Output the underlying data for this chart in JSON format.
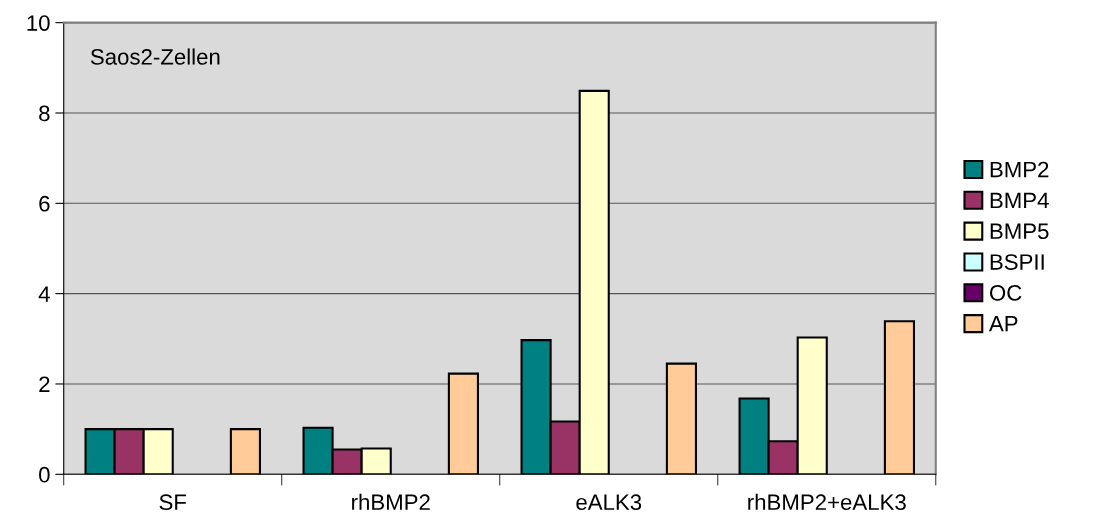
{
  "chart_data": {
    "type": "bar",
    "title": "Saos2-Zellen",
    "categories": [
      "SF",
      "rhBMP2",
      "eALK3",
      "rhBMP2+eALK3"
    ],
    "series": [
      {
        "name": "BMP2",
        "color": "#008080",
        "values": [
          1.0,
          1.03,
          2.97,
          1.68
        ]
      },
      {
        "name": "BMP4",
        "color": "#993366",
        "values": [
          1.0,
          0.55,
          1.17,
          0.73
        ]
      },
      {
        "name": "BMP5",
        "color": "#ffffcc",
        "values": [
          1.0,
          0.57,
          8.49,
          3.03
        ]
      },
      {
        "name": "BSPII",
        "color": "#ccffff",
        "values": [
          null,
          null,
          null,
          null
        ]
      },
      {
        "name": "OC",
        "color": "#660066",
        "values": [
          null,
          null,
          null,
          null
        ]
      },
      {
        "name": "AP",
        "color": "#ffcc99",
        "values": [
          1.0,
          2.23,
          2.45,
          3.39
        ]
      }
    ],
    "ylim": [
      0,
      10
    ],
    "yticks": [
      0,
      2,
      4,
      6,
      8,
      10
    ],
    "grid": "y",
    "legend": "right"
  }
}
